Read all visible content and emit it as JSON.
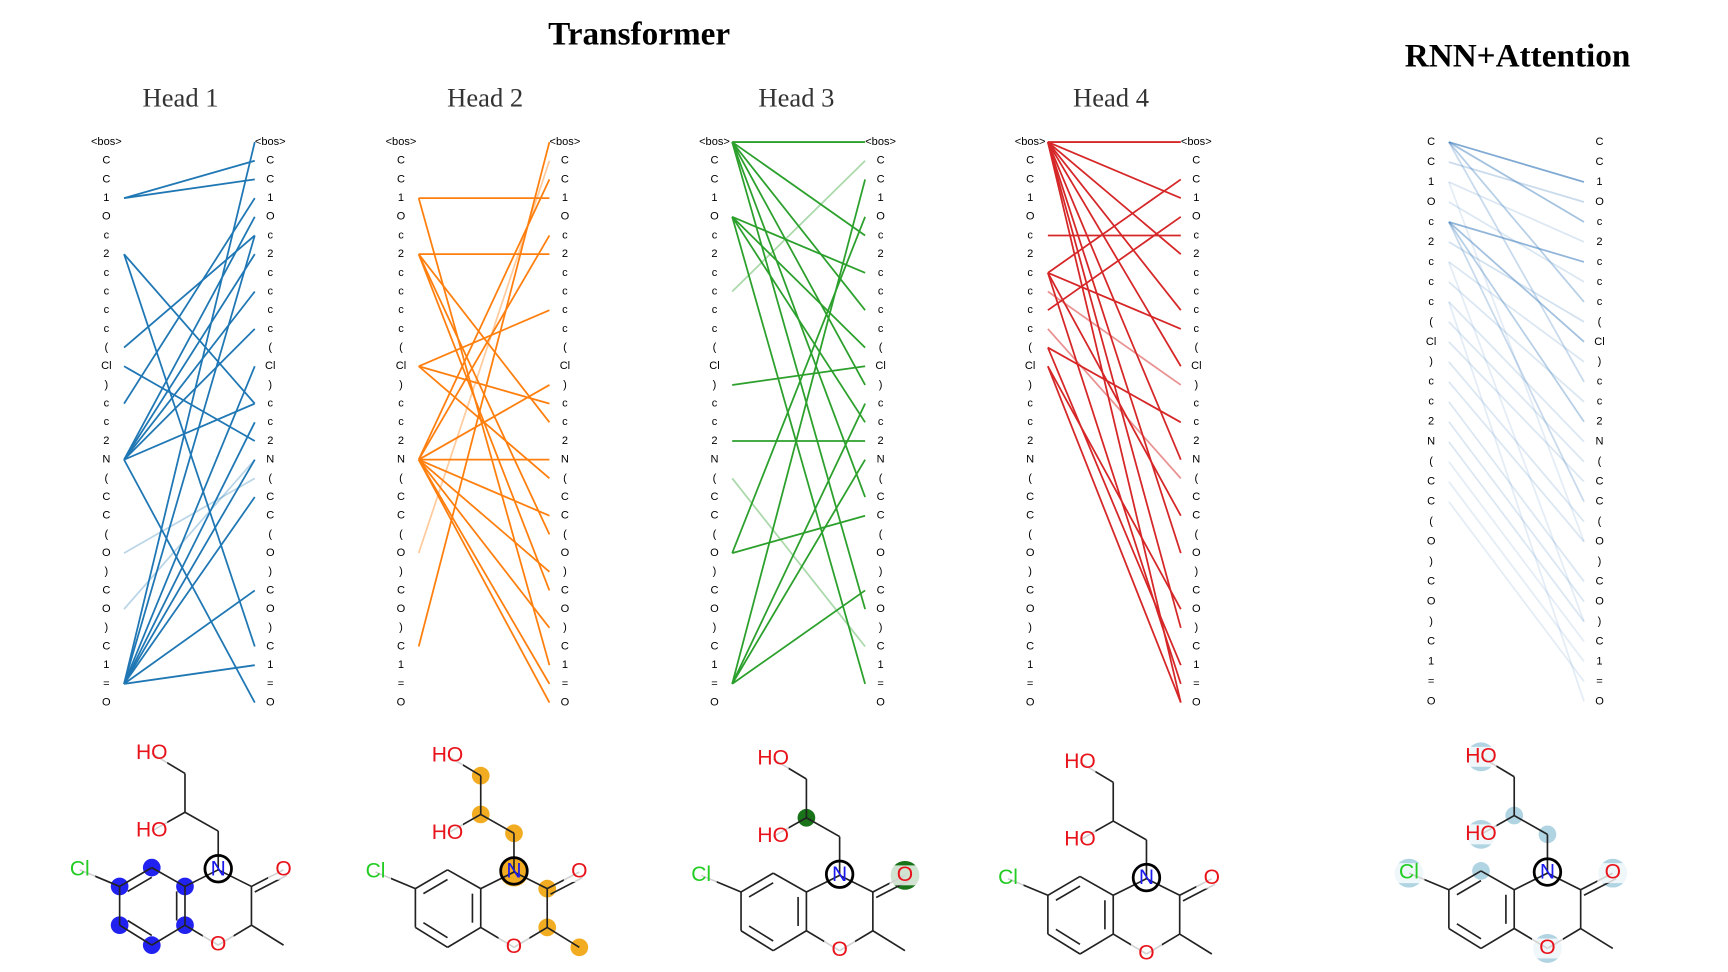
{
  "transformer": {
    "title": "Transformer",
    "tokens": [
      "<bos>",
      "C",
      "C",
      "1",
      "O",
      "c",
      "2",
      "c",
      "c",
      "c",
      "c",
      "(",
      "Cl",
      ")",
      "c",
      "c",
      "2",
      "N",
      "(",
      "C",
      "C",
      "(",
      "O",
      ")",
      "C",
      "O",
      ")",
      "C",
      "1",
      "=",
      "O"
    ],
    "heads": [
      {
        "title": "Head 1",
        "color": "#1f77b4",
        "highlight_color": "#0a0aee",
        "edges": [
          [
            3,
            1,
            1
          ],
          [
            3,
            2,
            1
          ],
          [
            6,
            14,
            1
          ],
          [
            6,
            27,
            1
          ],
          [
            11,
            5,
            1
          ],
          [
            12,
            16,
            1
          ],
          [
            17,
            4,
            1
          ],
          [
            17,
            6,
            1
          ],
          [
            17,
            8,
            1
          ],
          [
            17,
            10,
            1
          ],
          [
            17,
            14,
            1
          ],
          [
            17,
            30,
            1
          ],
          [
            29,
            0,
            1
          ],
          [
            29,
            5,
            1
          ],
          [
            29,
            12,
            1
          ],
          [
            29,
            15,
            1
          ],
          [
            29,
            17,
            1
          ],
          [
            29,
            19,
            1
          ],
          [
            29,
            24,
            1
          ],
          [
            29,
            28,
            1
          ],
          [
            22,
            18,
            0.3
          ],
          [
            25,
            17,
            0.3
          ],
          [
            14,
            3,
            1
          ]
        ],
        "highlight": [
          1,
          2,
          3,
          4,
          5,
          6
        ]
      },
      {
        "title": "Head 2",
        "color": "#ff7f0e",
        "highlight_color": "#f0a30a",
        "edges": [
          [
            3,
            3,
            1
          ],
          [
            3,
            28,
            1
          ],
          [
            6,
            6,
            1
          ],
          [
            6,
            15,
            1
          ],
          [
            6,
            21,
            1
          ],
          [
            12,
            9,
            1
          ],
          [
            12,
            14,
            1
          ],
          [
            12,
            18,
            1
          ],
          [
            17,
            2,
            1
          ],
          [
            17,
            5,
            1
          ],
          [
            17,
            13,
            1
          ],
          [
            17,
            17,
            1
          ],
          [
            17,
            20,
            1
          ],
          [
            17,
            23,
            1
          ],
          [
            17,
            26,
            1
          ],
          [
            17,
            30,
            1
          ],
          [
            27,
            0,
            1
          ],
          [
            22,
            1,
            0.4
          ],
          [
            17,
            29,
            1
          ],
          [
            6,
            24,
            1
          ]
        ],
        "highlight": [
          0,
          13,
          14,
          16,
          9,
          8,
          11
        ]
      },
      {
        "title": "Head 3",
        "color": "#2ca02c",
        "highlight_color": "#006400",
        "edges": [
          [
            0,
            0,
            1
          ],
          [
            0,
            5,
            1
          ],
          [
            0,
            9,
            1
          ],
          [
            0,
            13,
            1
          ],
          [
            0,
            19,
            1
          ],
          [
            0,
            25,
            1
          ],
          [
            4,
            7,
            1
          ],
          [
            4,
            11,
            1
          ],
          [
            4,
            15,
            1
          ],
          [
            4,
            29,
            1
          ],
          [
            13,
            12,
            1
          ],
          [
            16,
            16,
            1
          ],
          [
            22,
            4,
            1
          ],
          [
            22,
            20,
            1
          ],
          [
            29,
            2,
            1
          ],
          [
            29,
            14,
            1
          ],
          [
            29,
            17,
            1
          ],
          [
            29,
            24,
            1
          ],
          [
            18,
            27,
            0.4
          ],
          [
            8,
            1,
            0.4
          ]
        ],
        "highlight": [
          14,
          10
        ]
      },
      {
        "title": "Head 4",
        "color": "#d62728",
        "highlight_color": "#d62728",
        "edges": [
          [
            0,
            0,
            1
          ],
          [
            0,
            3,
            1
          ],
          [
            0,
            6,
            1
          ],
          [
            0,
            9,
            1
          ],
          [
            0,
            12,
            1
          ],
          [
            0,
            17,
            1
          ],
          [
            0,
            22,
            1
          ],
          [
            0,
            26,
            1
          ],
          [
            0,
            30,
            1
          ],
          [
            5,
            5,
            1
          ],
          [
            7,
            2,
            1
          ],
          [
            7,
            10,
            1
          ],
          [
            7,
            20,
            1
          ],
          [
            7,
            29,
            1
          ],
          [
            9,
            4,
            1
          ],
          [
            11,
            15,
            1
          ],
          [
            11,
            28,
            1
          ],
          [
            12,
            25,
            1
          ],
          [
            12,
            30,
            1
          ],
          [
            10,
            18,
            0.5
          ],
          [
            8,
            13,
            0.5
          ]
        ],
        "highlight": []
      }
    ]
  },
  "rnn": {
    "title": "RNN+Attention",
    "color": "#4a86c0",
    "highlight_color": "#a8cfe0",
    "tokens": [
      "C",
      "C",
      "1",
      "O",
      "c",
      "2",
      "c",
      "c",
      "c",
      "(",
      "Cl",
      ")",
      "c",
      "c",
      "2",
      "N",
      "(",
      "C",
      "C",
      "(",
      "O",
      ")",
      "C",
      "O",
      ")",
      "C",
      "1",
      "=",
      "O"
    ],
    "edges": [
      [
        0,
        2,
        0.7
      ],
      [
        0,
        4,
        0.5
      ],
      [
        0,
        8,
        0.4
      ],
      [
        0,
        12,
        0.3
      ],
      [
        4,
        6,
        0.6
      ],
      [
        4,
        10,
        0.5
      ],
      [
        4,
        14,
        0.4
      ],
      [
        4,
        18,
        0.3
      ],
      [
        1,
        3,
        0.3
      ],
      [
        2,
        5,
        0.2
      ],
      [
        3,
        7,
        0.2
      ],
      [
        5,
        9,
        0.25
      ],
      [
        6,
        11,
        0.2
      ],
      [
        7,
        13,
        0.2
      ],
      [
        8,
        15,
        0.2
      ],
      [
        9,
        16,
        0.2
      ],
      [
        10,
        17,
        0.2
      ],
      [
        11,
        19,
        0.2
      ],
      [
        12,
        20,
        0.2
      ],
      [
        13,
        22,
        0.2
      ],
      [
        14,
        23,
        0.2
      ],
      [
        15,
        24,
        0.2
      ],
      [
        16,
        25,
        0.15
      ],
      [
        17,
        26,
        0.15
      ],
      [
        18,
        27,
        0.15
      ],
      [
        2,
        20,
        0.15
      ],
      [
        6,
        24,
        0.15
      ],
      [
        8,
        28,
        0.15
      ]
    ],
    "highlight": [
      17,
      15,
      12,
      10,
      7,
      14,
      13,
      2
    ]
  },
  "molecule_labels": [
    "N",
    "O",
    "O",
    "Cl",
    "HO",
    "HO"
  ]
}
